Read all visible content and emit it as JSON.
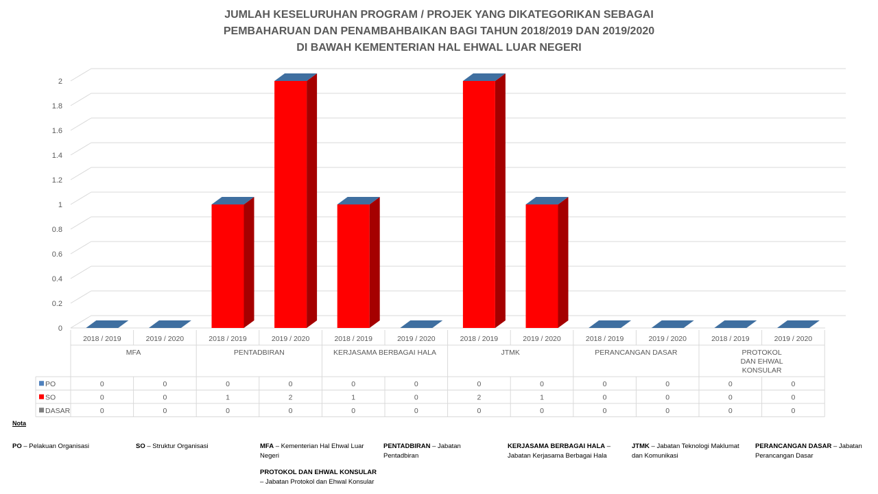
{
  "title_lines": [
    "JUMLAH KESELURUHAN PROGRAM / PROJEK YANG DIKATEGORIKAN SEBAGAI",
    "PEMBAHARUAN DAN PENAMBAHBAIKAN BAGI TAHUN 2018/2019 DAN 2019/2020",
    "DI BAWAH KEMENTERIAN HAL EHWAL LUAR NEGERI"
  ],
  "colors": {
    "PO": "#4f81bd",
    "SO": "#ff0000",
    "DASAR": "#7f7f7f",
    "zero_top": "#3f6fa0"
  },
  "chart_data": {
    "type": "bar",
    "groups": [
      {
        "label": [
          "MFA"
        ],
        "years": [
          "2018 / 2019",
          "2019 / 2020"
        ]
      },
      {
        "label": [
          "PENTADBIRAN"
        ],
        "years": [
          "2018 / 2019",
          "2019 / 2020"
        ]
      },
      {
        "label": [
          "KERJASAMA BERBAGAI HALA"
        ],
        "years": [
          "2018 / 2019",
          "2019 / 2020"
        ]
      },
      {
        "label": [
          "JTMK"
        ],
        "years": [
          "2018 / 2019",
          "2019 / 2020"
        ]
      },
      {
        "label": [
          "PERANCANGAN DASAR"
        ],
        "years": [
          "2018 / 2019",
          "2019 / 2020"
        ]
      },
      {
        "label": [
          "PROTOKOL",
          "DAN EHWAL",
          "KONSULAR"
        ],
        "years": [
          "2018 / 2019",
          "2019 / 2020"
        ]
      }
    ],
    "series": [
      {
        "name": "PO",
        "values": [
          0,
          0,
          0,
          0,
          0,
          0,
          0,
          0,
          0,
          0,
          0,
          0
        ]
      },
      {
        "name": "SO",
        "values": [
          0,
          0,
          1,
          2,
          1,
          0,
          2,
          1,
          0,
          0,
          0,
          0
        ]
      },
      {
        "name": "DASAR",
        "values": [
          0,
          0,
          0,
          0,
          0,
          0,
          0,
          0,
          0,
          0,
          0,
          0
        ]
      }
    ],
    "yticks": [
      "0",
      "0.2",
      "0.4",
      "0.6",
      "0.8",
      "1",
      "1.2",
      "1.4",
      "1.6",
      "1.8",
      "2"
    ],
    "ylim": [
      0,
      2
    ],
    "grid": true,
    "legend": "data-table"
  },
  "notes": {
    "heading": "Nota",
    "items": [
      {
        "key": "PO",
        "text": "Pelakuan Organisasi"
      },
      {
        "key": "SO",
        "text": "Struktur Organisasi"
      },
      {
        "key": "MFA",
        "text": "Kementerian Hal Ehwal Luar Negeri"
      },
      {
        "key": "PENTADBIRAN",
        "text": "Jabatan Pentadbiran"
      },
      {
        "key": "KERJASAMA BERBAGAI HALA",
        "text": "Jabatan Kerjasama Berbagai Hala"
      },
      {
        "key": "JTMK",
        "text": "Jabatan Teknologi Maklumat dan Komunikasi"
      },
      {
        "key": "PERANCANGAN DASAR",
        "text": "Jabatan Perancangan Dasar"
      },
      {
        "key": "PROTOKOL DAN EHWAL KONSULAR",
        "text": "Jabatan Protokol dan Ehwal Konsular"
      }
    ]
  }
}
